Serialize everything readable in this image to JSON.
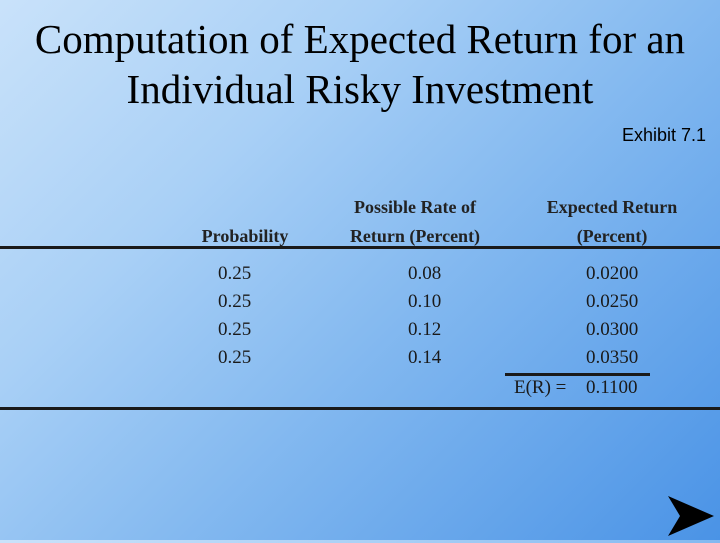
{
  "slide": {
    "title_line1": "Computation of Expected Return for an",
    "title_line2": "Individual Risky Investment",
    "exhibit": "Exhibit 7.1"
  },
  "table": {
    "headers": {
      "col1": "Probability",
      "col2_line1": "Possible Rate of",
      "col2_line2": "Return (Percent)",
      "col3_line1": "Expected Return",
      "col3_line2": "(Percent)"
    },
    "rows": [
      {
        "probability": "0.25",
        "rate": "0.08",
        "expected": "0.0200"
      },
      {
        "probability": "0.25",
        "rate": "0.10",
        "expected": "0.0250"
      },
      {
        "probability": "0.25",
        "rate": "0.12",
        "expected": "0.0300"
      },
      {
        "probability": "0.25",
        "rate": "0.14",
        "expected": "0.0350"
      }
    ],
    "total_label": "E(R) =",
    "total_value": "0.1100"
  },
  "nav": {
    "next_icon": "arrow-right-icon",
    "icon_color": "#000000"
  }
}
